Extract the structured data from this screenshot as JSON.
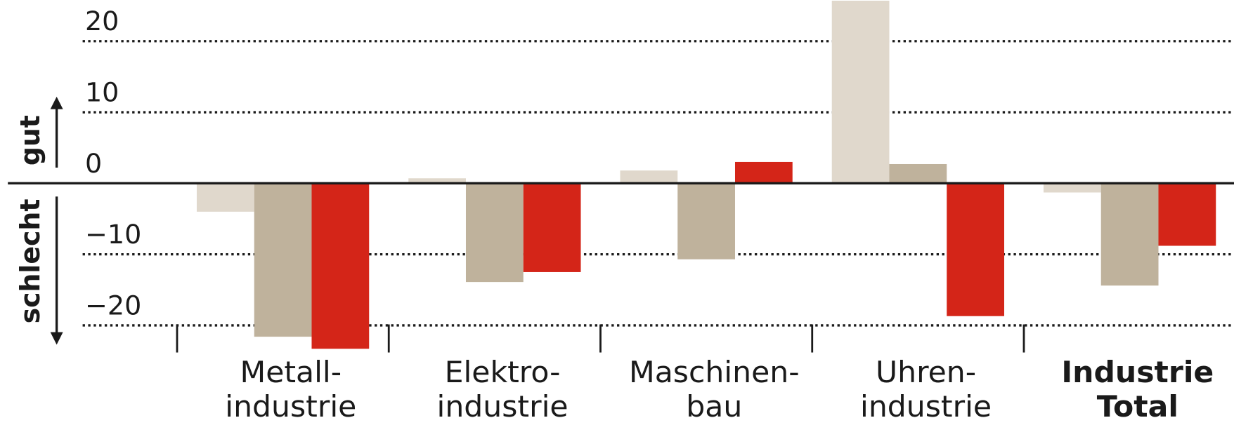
{
  "chart_data": {
    "type": "bar",
    "categories": [
      "Metall-\nindustrie",
      "Elektro-\nindustrie",
      "Maschinen-\nbau",
      "Uhren-\nindustrie",
      "Industrie\nTotal"
    ],
    "bold_category_index": 4,
    "series": [
      {
        "color": "#e0d8cc",
        "values": [
          -4.0,
          0.7,
          1.8,
          25.7,
          -1.3
        ]
      },
      {
        "color": "#bfb29c",
        "values": [
          -21.6,
          -13.9,
          -10.7,
          2.7,
          -14.4
        ]
      },
      {
        "color": "#d42518",
        "values": [
          -23.3,
          -12.5,
          3.0,
          -18.7,
          -8.8
        ]
      }
    ],
    "ylim": [
      -22.5,
      25.8
    ],
    "yticks": [
      {
        "value": -20,
        "label": "−20"
      },
      {
        "value": -10,
        "label": "−10"
      },
      0,
      10,
      20
    ],
    "ylabel_up": "gut",
    "ylabel_down": "schlecht",
    "grid": true
  }
}
